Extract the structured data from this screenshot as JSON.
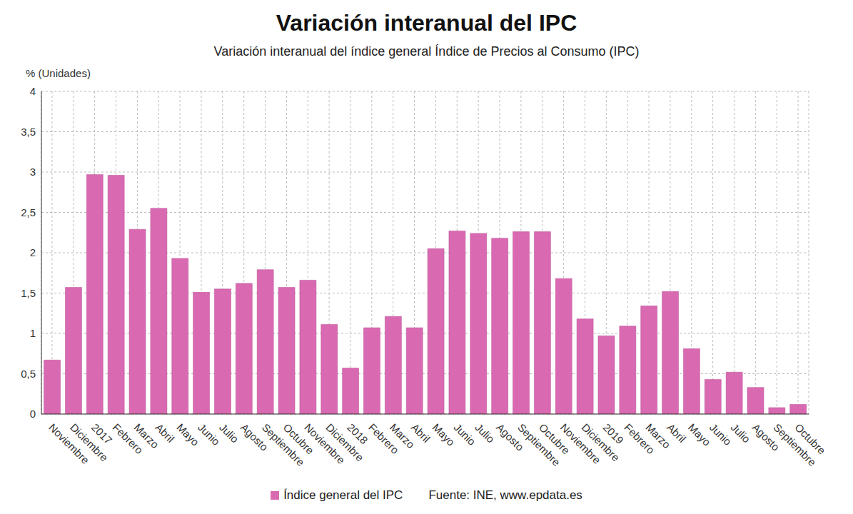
{
  "chart_data": {
    "type": "bar",
    "title": "Variación interanual del IPC",
    "subtitle": "Variación interanual del índice general Índice de Precios al Consumo (IPC)",
    "y_label": "% (Unidades)",
    "source": "Fuente: INE, www.epdata.es",
    "categories": [
      "Noviembre",
      "Diciembre",
      "2017",
      "Febrero",
      "Marzo",
      "Abril",
      "Mayo",
      "Junio",
      "Julio",
      "Agosto",
      "Septiembre",
      "Octubre",
      "Noviembre",
      "Diciembre",
      "2018",
      "Febrero",
      "Marzo",
      "Abril",
      "Mayo",
      "Junio",
      "Julio",
      "Agosto",
      "Septiembre",
      "Octubre",
      "Noviembre",
      "Diciembre",
      "2019",
      "Febrero",
      "Marzo",
      "Abril",
      "Mayo",
      "Junio",
      "Julio",
      "Agosto",
      "Septiembre",
      "Octubre"
    ],
    "series": [
      {
        "name": "Índice general del IPC",
        "color": "#d96ab2",
        "values": [
          0.67,
          1.57,
          2.97,
          2.96,
          2.29,
          2.55,
          1.93,
          1.51,
          1.55,
          1.62,
          1.79,
          1.57,
          1.66,
          1.11,
          0.57,
          1.07,
          1.21,
          1.07,
          2.05,
          2.27,
          2.24,
          2.18,
          2.26,
          2.26,
          1.68,
          1.18,
          0.97,
          1.09,
          1.34,
          1.52,
          0.81,
          0.43,
          0.52,
          0.33,
          0.08,
          0.12
        ]
      }
    ],
    "ylim": [
      0,
      4
    ],
    "yticks": [
      0,
      {
        "value": 0.5,
        "label": "0,5"
      },
      1,
      {
        "value": 1.5,
        "label": "1,5"
      },
      2,
      {
        "value": 2.5,
        "label": "2,5"
      },
      3,
      {
        "value": 3.5,
        "label": "3,5"
      },
      4
    ],
    "grid": true,
    "legend": "bottom"
  }
}
